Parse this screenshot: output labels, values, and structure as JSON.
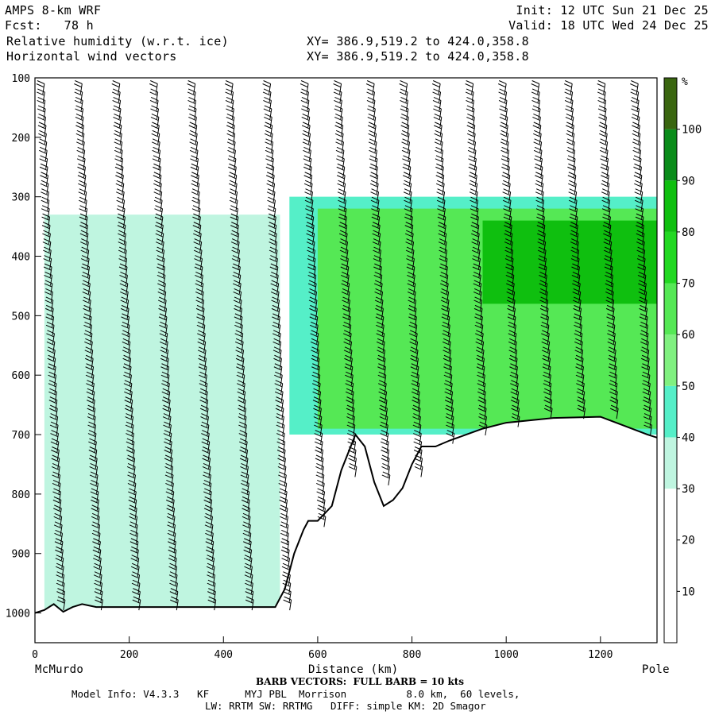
{
  "header": {
    "model": "AMPS 8-km WRF",
    "fcst": "Fcst:   78 h",
    "field1": "Relative humidity (w.r.t. ice)",
    "field2": "Horizontal wind vectors",
    "init": "Init: 12 UTC Sun 21 Dec 25",
    "valid": "Valid: 18 UTC Wed 24 Dec 25",
    "xy1": "XY= 386.9,519.2 to 424.0,358.8",
    "xy2": "XY= 386.9,519.2 to 424.0,358.8"
  },
  "chart_data": {
    "type": "heatmap",
    "xlabel": "Distance (km)",
    "x_left_label": "McMurdo",
    "x_right_label": "Pole",
    "xlim": [
      0,
      1320
    ],
    "ylim": [
      1050,
      100
    ],
    "x_ticks": [
      0,
      200,
      400,
      600,
      800,
      1000,
      1200
    ],
    "y_ticks": [
      100,
      200,
      300,
      400,
      500,
      600,
      700,
      800,
      900,
      1000
    ],
    "colorbar": {
      "unit": "%",
      "ticks": [
        10,
        20,
        30,
        40,
        50,
        60,
        70,
        80,
        90,
        100
      ],
      "bins": [
        {
          "lo": 0,
          "hi": 30,
          "color": "#ffffff"
        },
        {
          "lo": 30,
          "hi": 40,
          "color": "#bff5e0"
        },
        {
          "lo": 40,
          "hi": 50,
          "color": "#55efc8"
        },
        {
          "lo": 50,
          "hi": 60,
          "color": "#80f080"
        },
        {
          "lo": 60,
          "hi": 70,
          "color": "#55e855"
        },
        {
          "lo": 70,
          "hi": 80,
          "color": "#22d822"
        },
        {
          "lo": 80,
          "hi": 90,
          "color": "#0fbf0f"
        },
        {
          "lo": 90,
          "hi": 100,
          "color": "#0a8c1a"
        },
        {
          "lo": 100,
          "hi": 110,
          "color": "#3a6610"
        }
      ]
    },
    "terrain_profile": {
      "x": [
        0,
        20,
        40,
        60,
        80,
        100,
        130,
        200,
        300,
        400,
        510,
        530,
        550,
        570,
        580,
        600,
        630,
        650,
        680,
        700,
        720,
        740,
        760,
        780,
        800,
        820,
        850,
        880,
        950,
        1000,
        1100,
        1200,
        1250,
        1300,
        1320
      ],
      "p": [
        1000,
        995,
        985,
        998,
        990,
        985,
        990,
        990,
        990,
        990,
        990,
        960,
        900,
        860,
        845,
        845,
        820,
        760,
        700,
        720,
        780,
        820,
        810,
        790,
        750,
        720,
        720,
        710,
        690,
        680,
        672,
        670,
        685,
        700,
        705
      ]
    },
    "rh_regions": [
      {
        "band": "30-40",
        "x": [
          20,
          520
        ],
        "p": [
          330,
          1000
        ]
      },
      {
        "band": "40-50",
        "x": [
          540,
          1320
        ],
        "p": [
          300,
          700
        ]
      },
      {
        "band": "60-70",
        "x": [
          600,
          1320
        ],
        "p": [
          320,
          690
        ]
      },
      {
        "band": "80-90",
        "x": [
          950,
          1320
        ],
        "p": [
          340,
          480
        ]
      }
    ],
    "barb_columns_x": [
      20,
      100,
      180,
      260,
      340,
      420,
      500,
      580,
      650,
      720,
      790,
      860,
      930,
      1000,
      1070,
      1140,
      1210,
      1280
    ]
  },
  "footer": {
    "barb_note": "BARB VECTORS:  FULL BARB = 10 kts",
    "model_info": "Model Info: V4.3.3   KF      MYJ PBL  Morrison          8.0 km,  60 levels,",
    "physics": "LW: RRTM SW: RRTMG   DIFF: simple KM: 2D Smagor"
  }
}
